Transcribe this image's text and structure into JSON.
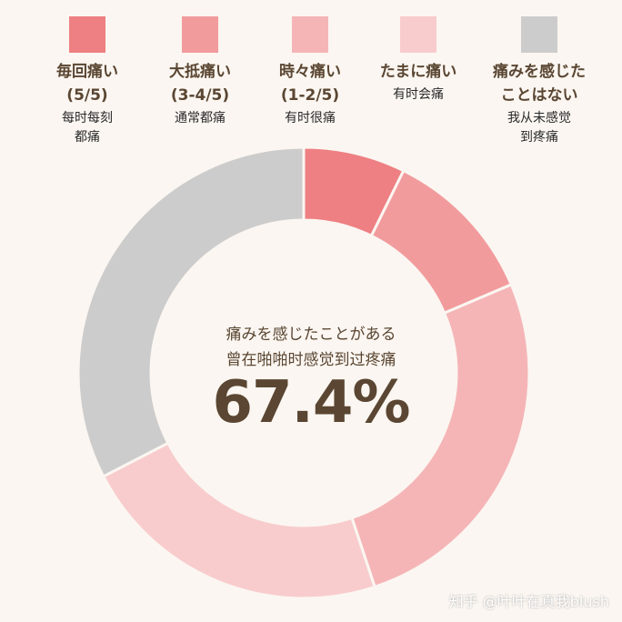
{
  "legend": [
    {
      "color": "#ee7f82",
      "jp": "毎回痛い\n(5/5)",
      "cn": "每时每刻\n都痛"
    },
    {
      "color": "#f29b9d",
      "jp": "大抵痛い\n(3-4/5)",
      "cn": "通常都痛"
    },
    {
      "color": "#f5b5b7",
      "jp": "時々痛い\n(1-2/5)",
      "cn": "有时很痛"
    },
    {
      "color": "#f8cccd",
      "jp": "たまに痛い",
      "cn": "有时会痛"
    },
    {
      "color": "#cdcccc",
      "jp": "痛みを感じた\nことはない",
      "cn": "我从未感觉\n到疼痛"
    }
  ],
  "center": {
    "jp": "痛みを感じたことがある",
    "cn": "曾在啪啪时感觉到过疼痛",
    "value": "67.4%"
  },
  "chart_data": {
    "type": "pie",
    "donut": true,
    "categories": [
      "毎回痛い (5/5)",
      "大抵痛い (3-4/5)",
      "時々痛い (1-2/5)",
      "たまに痛い",
      "痛みを感じたことはない"
    ],
    "values": [
      7.3,
      11.3,
      26.3,
      22.5,
      32.6
    ],
    "colors": [
      "#ee7f82",
      "#f29b9d",
      "#f5b5b7",
      "#f8cccd",
      "#cdcccc"
    ]
  },
  "watermark": "知乎 @叶叶在真我blush"
}
